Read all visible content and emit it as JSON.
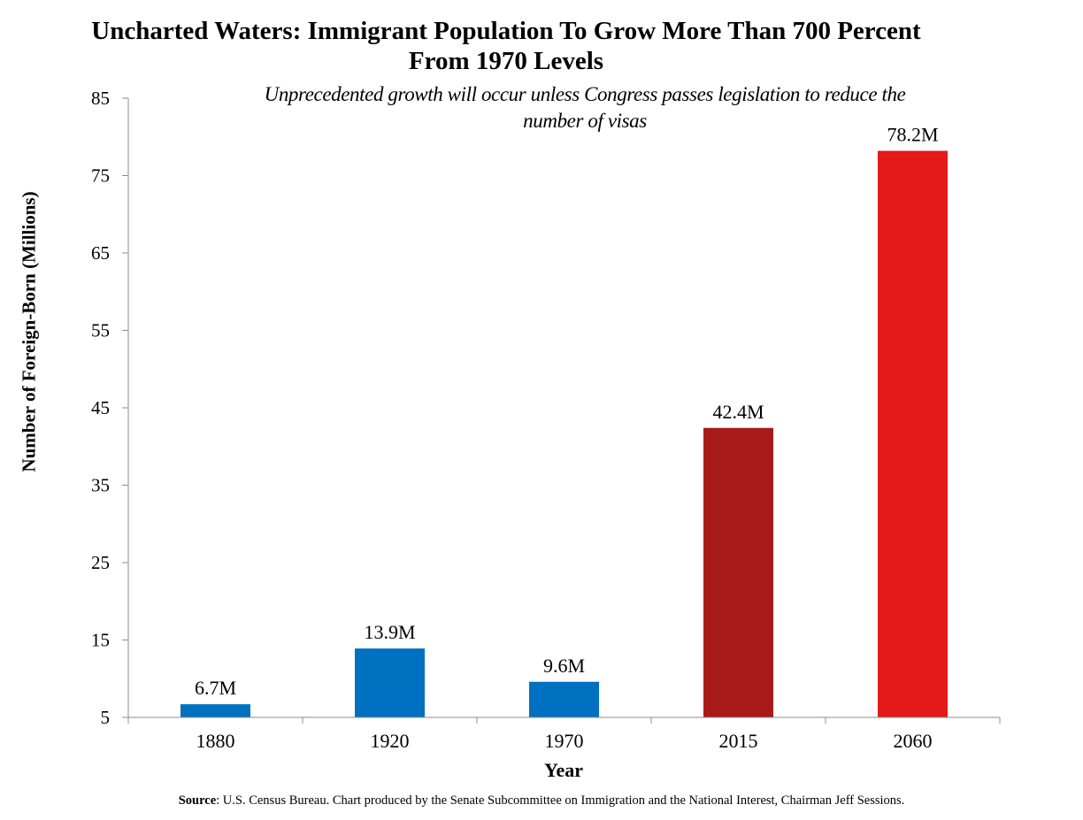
{
  "chart_data": {
    "type": "bar",
    "title": [
      "Uncharted Waters: Immigrant Population To Grow More Than 700 Percent",
      "From 1970 Levels"
    ],
    "subtitle": [
      "Unprecedented growth will occur unless Congress passes legislation to reduce the",
      "number of visas"
    ],
    "xlabel": "Year",
    "ylabel": "Number of Foreign-Born (Millions)",
    "categories": [
      "1880",
      "1920",
      "1970",
      "2015",
      "2060"
    ],
    "values": [
      6.7,
      13.9,
      9.6,
      42.4,
      78.2
    ],
    "data_labels": [
      "6.7M",
      "13.9M",
      "9.6M",
      "42.4M",
      "78.2M"
    ],
    "colors": [
      "#0070C0",
      "#0070C0",
      "#0070C0",
      "#A81A1A",
      "#E3191A"
    ],
    "ylim": [
      5,
      85
    ],
    "yticks": [
      5,
      15,
      25,
      35,
      45,
      55,
      65,
      75,
      85
    ],
    "grid": false,
    "legend": "none"
  },
  "source": {
    "label": "Source",
    "text": ":  U.S. Census Bureau. Chart produced by the Senate Subcommittee on Immigration and the National Interest, Chairman Jeff Sessions."
  }
}
